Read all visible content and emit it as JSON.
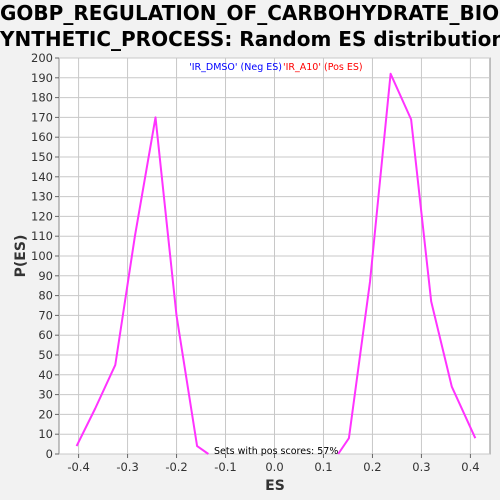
{
  "chart_data": {
    "type": "line",
    "title_line1": "GOBP_REGULATION_OF_CARBOHYDRATE_BIOS",
    "title_line2": "YNTHETIC_PROCESS: Random ES distribution",
    "xlabel": "ES",
    "ylabel": "P(ES)",
    "xlim": [
      -0.44,
      0.44
    ],
    "ylim": [
      0,
      200
    ],
    "x_ticks": [
      "-0.4",
      "-0.3",
      "-0.2",
      "-0.1",
      "0.0",
      "0.1",
      "0.2",
      "0.3",
      "0.4"
    ],
    "y_ticks": [
      "0",
      "10",
      "20",
      "30",
      "40",
      "50",
      "60",
      "70",
      "80",
      "90",
      "100",
      "110",
      "120",
      "130",
      "140",
      "150",
      "160",
      "170",
      "180",
      "190",
      "200"
    ],
    "grid": true,
    "legend": [
      {
        "label": "'IR_DMSO' (Neg ES)",
        "color": "#0000ff"
      },
      {
        "label": "'IR_A10' (Pos ES)",
        "color": "#ff0000"
      }
    ],
    "annotation": "Sets with pos scores: 57%",
    "line_color": "#ff33ff",
    "series": [
      {
        "x": [
          -0.404,
          -0.366,
          -0.325,
          -0.285,
          -0.243,
          -0.2,
          -0.158,
          -0.135
        ],
        "y": [
          4,
          23,
          45,
          110,
          170,
          70,
          4,
          0
        ]
      },
      {
        "x": [
          0.13,
          0.152,
          0.195,
          0.237,
          0.279,
          0.32,
          0.362,
          0.41
        ],
        "y": [
          0,
          8,
          87,
          192,
          169,
          77,
          34,
          8
        ]
      }
    ]
  }
}
